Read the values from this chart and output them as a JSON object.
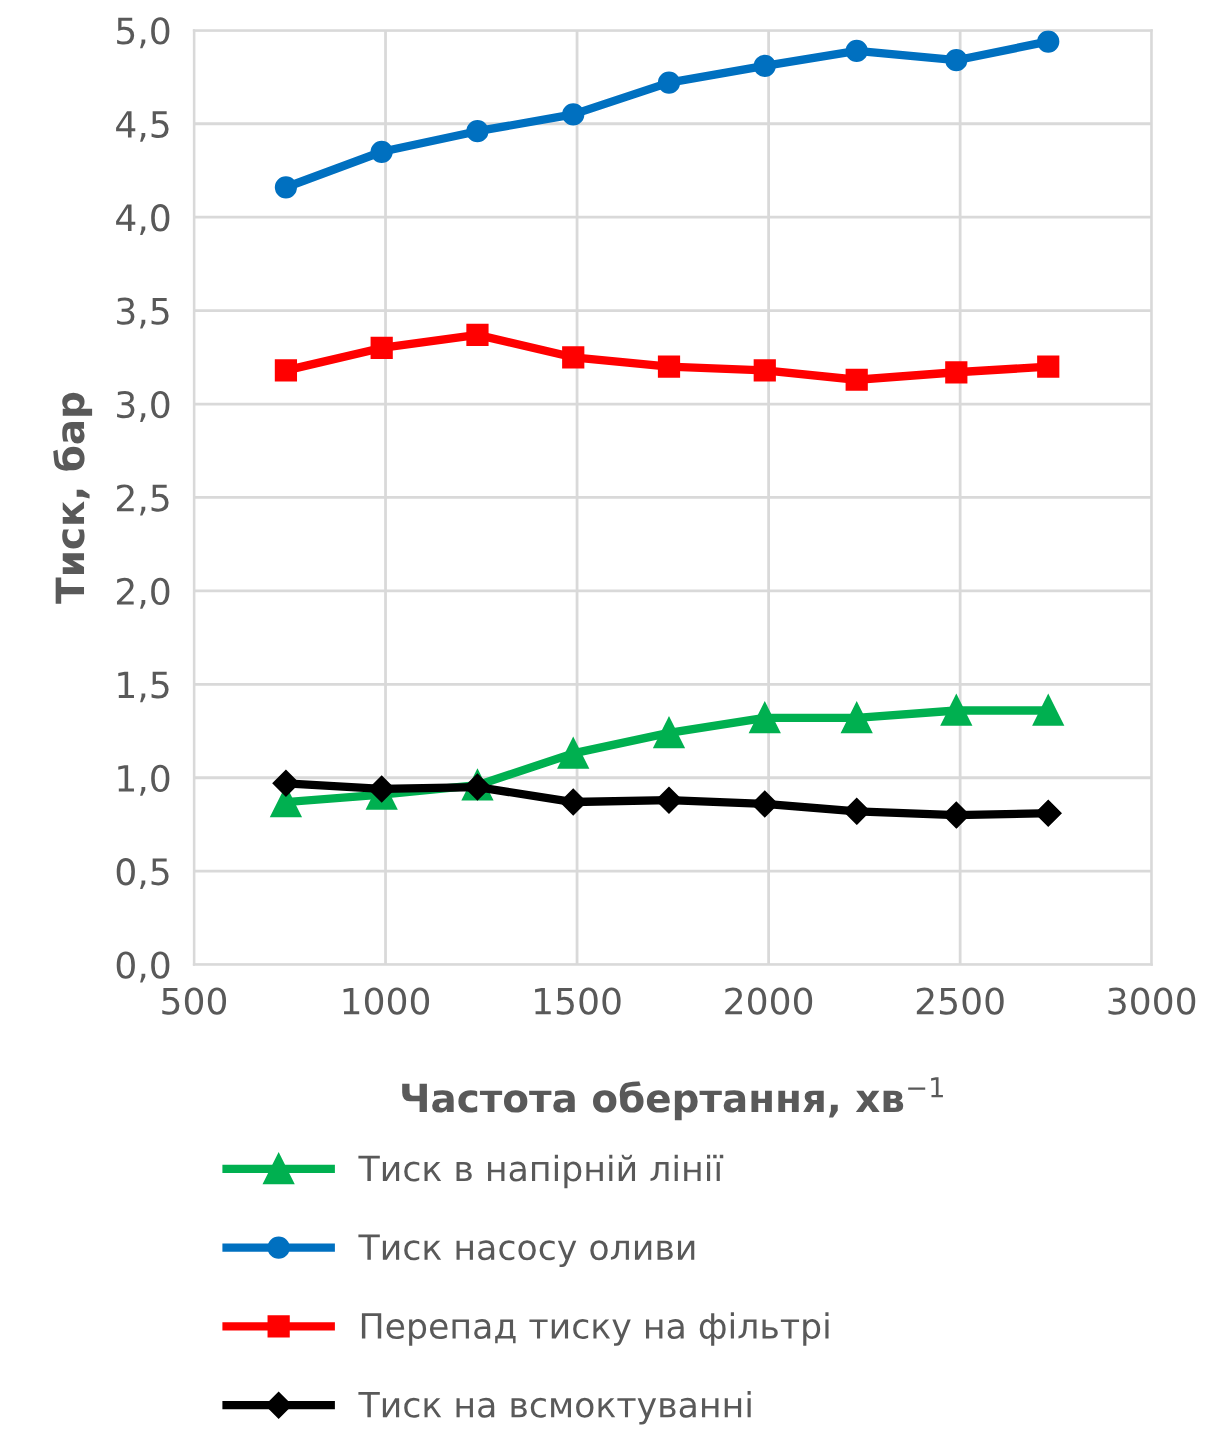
{
  "chart_data": {
    "type": "line",
    "xlabel": "Частота обертання, хв$^{−1}$",
    "ylabel": "Тиск, бар",
    "x": [
      740,
      990,
      1240,
      1490,
      1740,
      1990,
      2230,
      2490,
      2730
    ],
    "series": [
      {
        "name": "Тиск в напірній лінії",
        "color": "#00b050",
        "marker": "triangle",
        "values": [
          0.87,
          0.91,
          0.96,
          1.13,
          1.24,
          1.32,
          1.32,
          1.36,
          1.36
        ]
      },
      {
        "name": "Тиск насосу оливи",
        "color": "#0070c0",
        "marker": "circle",
        "values": [
          4.16,
          4.35,
          4.46,
          4.55,
          4.72,
          4.81,
          4.89,
          4.84,
          4.94
        ]
      },
      {
        "name": "Перепад тиску на фільтрі",
        "color": "#ff0000",
        "marker": "square",
        "values": [
          3.18,
          3.3,
          3.37,
          3.25,
          3.2,
          3.18,
          3.13,
          3.17,
          3.2
        ]
      },
      {
        "name": "Тиск на всмоктуванні",
        "color": "#000000",
        "marker": "diamond",
        "values": [
          0.97,
          0.94,
          0.95,
          0.87,
          0.88,
          0.86,
          0.82,
          0.8,
          0.81
        ]
      }
    ],
    "xlim": [
      500,
      3000
    ],
    "xticks": [
      500,
      1000,
      1500,
      2000,
      2500,
      3000
    ],
    "ylim": [
      0,
      5
    ],
    "yticks": [
      {
        "value": 0,
        "label": "0,0"
      },
      {
        "value": 0.5,
        "label": "0,5"
      },
      {
        "value": 1,
        "label": "1,0"
      },
      {
        "value": 1.5,
        "label": "1,5"
      },
      {
        "value": 2,
        "label": "2,0"
      },
      {
        "value": 2.5,
        "label": "2,5"
      },
      {
        "value": 3,
        "label": "3,0"
      },
      {
        "value": 3.5,
        "label": "3,5"
      },
      {
        "value": 4,
        "label": "4,0"
      },
      {
        "value": 4.5,
        "label": "4,5"
      },
      {
        "value": 5,
        "label": "5,0"
      }
    ],
    "grid": true,
    "legend": "bottom",
    "line_style": "solid"
  }
}
